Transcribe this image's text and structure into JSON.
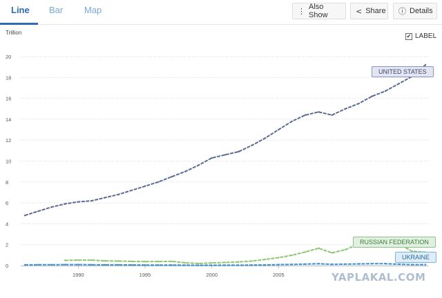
{
  "tabs": [
    {
      "label": "Line",
      "active": true
    },
    {
      "label": "Bar",
      "active": false
    },
    {
      "label": "Map",
      "active": false
    }
  ],
  "toolbar": {
    "also_show": {
      "label": "Also Show",
      "icon": "vertical-dots-icon"
    },
    "share": {
      "label": "Share",
      "icon": "share-icon"
    },
    "details": {
      "label": "Details",
      "icon": "info-icon"
    }
  },
  "label_toggle": {
    "label": "LABEL",
    "checked": true
  },
  "series_labels": {
    "us": "UNITED STATES",
    "russia": "RUSSIAN FEDERATION",
    "ukraine": "UKRAINE"
  },
  "watermark": "YAPLAKAL.COM",
  "colors": {
    "accent": "#2b6cb5",
    "us": "#5a6a96",
    "russia": "#8cc56d",
    "ukraine": "#3a8fd6",
    "grid": "#e2e2e2"
  },
  "chart_data": {
    "type": "line",
    "unit": "Trillion",
    "ylim": [
      0,
      20
    ],
    "y_ticks": [
      0,
      2,
      4,
      6,
      8,
      10,
      12,
      14,
      16,
      18,
      20
    ],
    "xlim": [
      1986,
      2016
    ],
    "x_ticks": [
      1990,
      1995,
      2000,
      2005
    ],
    "grid": true,
    "series": [
      {
        "name": "UNITED STATES",
        "x": [
          1986,
          1987,
          1988,
          1989,
          1990,
          1991,
          1992,
          1993,
          1994,
          1995,
          1996,
          1997,
          1998,
          1999,
          2000,
          2001,
          2002,
          2003,
          2004,
          2005,
          2006,
          2007,
          2008,
          2009,
          2010,
          2011,
          2012,
          2013,
          2014,
          2015,
          2016
        ],
        "values": [
          4.8,
          5.2,
          5.6,
          5.9,
          6.1,
          6.2,
          6.5,
          6.8,
          7.2,
          7.6,
          8.0,
          8.5,
          9.0,
          9.6,
          10.3,
          10.6,
          10.9,
          11.5,
          12.2,
          13.0,
          13.8,
          14.4,
          14.7,
          14.4,
          15.0,
          15.5,
          16.2,
          16.7,
          17.4,
          18.1,
          19.2
        ]
      },
      {
        "name": "RUSSIAN FEDERATION",
        "x": [
          1989,
          1990,
          1991,
          1992,
          1993,
          1994,
          1995,
          1996,
          1997,
          1998,
          1999,
          2000,
          2001,
          2002,
          2003,
          2004,
          2005,
          2006,
          2007,
          2008,
          2009,
          2010,
          2011,
          2012,
          2013,
          2014,
          2015,
          2016
        ],
        "values": [
          0.5,
          0.52,
          0.52,
          0.45,
          0.43,
          0.4,
          0.38,
          0.39,
          0.4,
          0.27,
          0.2,
          0.26,
          0.3,
          0.35,
          0.43,
          0.59,
          0.76,
          0.99,
          1.3,
          1.66,
          1.22,
          1.52,
          2.05,
          2.21,
          2.29,
          2.06,
          1.37,
          1.28
        ]
      },
      {
        "name": "UKRAINE",
        "x": [
          1986,
          1987,
          1988,
          1989,
          1990,
          1991,
          1992,
          1993,
          1994,
          1995,
          1996,
          1997,
          1998,
          1999,
          2000,
          2001,
          2002,
          2003,
          2004,
          2005,
          2006,
          2007,
          2008,
          2009,
          2010,
          2011,
          2012,
          2013,
          2014,
          2015,
          2016
        ],
        "values": [
          0.07,
          0.08,
          0.08,
          0.09,
          0.09,
          0.08,
          0.07,
          0.07,
          0.06,
          0.05,
          0.05,
          0.05,
          0.04,
          0.03,
          0.03,
          0.04,
          0.04,
          0.05,
          0.06,
          0.09,
          0.11,
          0.14,
          0.18,
          0.12,
          0.14,
          0.16,
          0.18,
          0.18,
          0.13,
          0.09,
          0.09
        ]
      }
    ]
  }
}
